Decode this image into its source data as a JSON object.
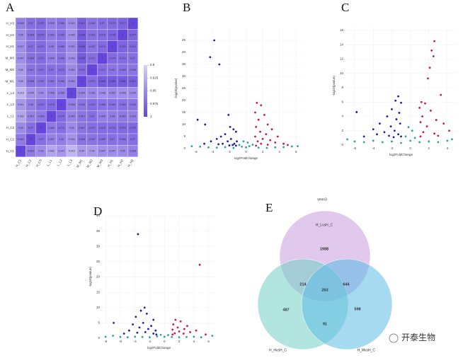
{
  "chart_data": [
    {
      "type": "heatmap",
      "label": "A",
      "rows": [
        "H_H3",
        "H_H2",
        "H_H1",
        "M_M3",
        "M_M2",
        "M_M1",
        "L_L3",
        "L_L2",
        "L_L1",
        "H_C3",
        "H_C2",
        "H_C1"
      ],
      "columns": [
        "H_C1",
        "H_C2",
        "H_C3",
        "L_L1",
        "L_L2",
        "L_L3",
        "M_M1",
        "M_M2",
        "M_M3",
        "H_H1",
        "H_H2",
        "H_H3"
      ],
      "values": [
        [
          0.958,
          0.97,
          0.975,
          0.959,
          0.966,
          0.949,
          0.981,
          0.966,
          0.97,
          0.974,
          0.977,
          1
        ],
        [
          0.95,
          0.968,
          0.975,
          0.963,
          0.969,
          0.948,
          0.985,
          0.969,
          0.973,
          0.978,
          1,
          0.977
        ],
        [
          0.947,
          0.97,
          0.973,
          0.96,
          0.968,
          0.952,
          0.985,
          0.967,
          0.974,
          1,
          0.978,
          0.974
        ],
        [
          0.947,
          0.969,
          0.973,
          0.959,
          0.968,
          0.948,
          0.985,
          0.971,
          1,
          0.974,
          0.973,
          0.97
        ],
        [
          0.94,
          0.967,
          0.971,
          0.97,
          0.972,
          0.952,
          0.973,
          1,
          0.971,
          0.967,
          0.969,
          0.966
        ],
        [
          0.94,
          0.968,
          0.967,
          0.967,
          0.966,
          0.954,
          1,
          0.973,
          0.985,
          0.985,
          0.985,
          0.981
        ],
        [
          0.919,
          0.945,
          0.95,
          0.956,
          0.958,
          1,
          0.954,
          0.952,
          0.948,
          0.952,
          0.948,
          0.949
        ],
        [
          0.941,
          0.96,
          0.971,
          0.974,
          1,
          0.958,
          0.966,
          0.972,
          0.968,
          0.968,
          0.969,
          0.966
        ],
        [
          0.932,
          0.957,
          0.963,
          1,
          0.974,
          0.956,
          0.967,
          0.97,
          0.959,
          0.96,
          0.963,
          0.959
        ],
        [
          0.95,
          0.97,
          1,
          0.963,
          0.971,
          0.95,
          0.967,
          0.971,
          0.973,
          0.973,
          0.975,
          0.975
        ],
        [
          0.962,
          1,
          0.97,
          0.957,
          0.96,
          0.945,
          0.968,
          0.967,
          0.969,
          0.97,
          0.968,
          0.97
        ],
        [
          1,
          0.962,
          0.95,
          0.932,
          0.941,
          0.919,
          0.94,
          0.94,
          0.947,
          0.947,
          0.95,
          0.958
        ]
      ],
      "colorscale": [
        "#d6d0f7",
        "#6446dc"
      ],
      "clim": [
        0.9,
        1
      ],
      "colorbar_ticks": [
        0.9,
        0.925,
        0.95,
        0.975,
        1
      ]
    },
    {
      "type": "scatter",
      "label": "B",
      "xlabel": "log2FoldChange",
      "ylabel": "-log10(pvalue)",
      "xlim": [
        -7,
        7
      ],
      "xticks": [
        -6,
        -4,
        -2,
        0,
        2,
        4,
        6
      ],
      "ylim": [
        0,
        50
      ],
      "yticks": [
        0,
        5,
        10,
        15,
        20,
        25,
        30,
        35,
        40,
        45
      ],
      "series": [
        {
          "color": "#1c1ca6",
          "x": [
            -3.8,
            -4.3,
            -3.2,
            -5.8,
            -4.9,
            -2.1,
            -1.9,
            -1.5,
            -1.2,
            -2.5,
            -3,
            -3.5,
            -1.8,
            -1.1,
            -2.2,
            -4.2,
            -1.4,
            -2.8,
            -1.6,
            -3.3,
            -5,
            -1.2,
            -2
          ],
          "values": [
            45,
            38,
            35,
            12,
            10,
            14,
            9,
            8,
            7,
            6,
            5,
            4,
            4,
            3,
            3,
            3,
            2,
            2,
            1.5,
            1.8,
            2,
            1.2,
            1.3
          ]
        },
        {
          "color": "#d3134b",
          "x": [
            1.3,
            1.8,
            1.1,
            2.2,
            1.5,
            2.6,
            1.2,
            3.1,
            1.7,
            2.4,
            1.1,
            3.8,
            2,
            2.9,
            1.4,
            3.5,
            4.5,
            1.8,
            2.6,
            5,
            1.2
          ],
          "values": [
            19,
            18,
            15,
            14,
            12,
            10,
            9,
            8,
            7,
            6,
            5,
            5,
            4,
            3.5,
            3,
            2.5,
            2,
            2,
            1.6,
            1.5,
            1.2
          ]
        },
        {
          "color": "#2aa3a0",
          "x": [
            -6.5,
            -5.5,
            -4.5,
            -3.5,
            -2.5,
            -1.5,
            -0.8,
            -0.5,
            0,
            0.4,
            0.8,
            1.5,
            2.5,
            3.5,
            4.5,
            5.5,
            6.2,
            0.2,
            -0.3
          ],
          "values": [
            1,
            0.8,
            0.5,
            0.4,
            0.6,
            0.3,
            1.5,
            0.8,
            0.5,
            1,
            1.6,
            0.4,
            0.3,
            0.5,
            0.6,
            0.9,
            1,
            2.5,
            3
          ]
        }
      ]
    },
    {
      "type": "scatter",
      "label": "C",
      "xlabel": "log2FoldChange",
      "ylabel": "-log10(pvalue)",
      "xlim": [
        -7,
        5
      ],
      "xticks": [
        -6,
        -4,
        -2,
        0,
        2,
        4
      ],
      "ylim": [
        0,
        16.5
      ],
      "yticks": [
        0,
        2,
        4,
        6,
        8,
        10,
        12,
        14,
        16
      ],
      "series": [
        {
          "color": "#1c1ca6",
          "x": [
            -1.3,
            -1.6,
            -1,
            -2,
            -1.2,
            -2.5,
            -1.5,
            -3.3,
            -1.1,
            -2.1,
            -4,
            -1.7,
            -5.8,
            -2.8,
            -1.3,
            -3.6,
            -1,
            -5,
            -2.3,
            -1.8
          ],
          "values": [
            6.8,
            6.2,
            5.9,
            5,
            4.5,
            4,
            3.6,
            3,
            3,
            2.6,
            2.2,
            2,
            4.6,
            1.8,
            1.5,
            1.5,
            1.2,
            1.2,
            1.3,
            1.1
          ]
        },
        {
          "color": "#d3134b",
          "x": [
            2.6,
            2.3,
            2.5,
            2.1,
            1.9,
            3.3,
            1.2,
            1.6,
            1,
            2.2,
            1.3,
            2.8,
            1.1,
            3.6,
            1.8,
            4.2,
            1.4,
            2.6,
            3,
            1.1
          ],
          "values": [
            14.5,
            13.2,
            12.4,
            10.8,
            9.3,
            7,
            6,
            5.8,
            5.2,
            4.8,
            4,
            3.5,
            3.2,
            3,
            2.6,
            2,
            1.8,
            1.6,
            1.3,
            1.2
          ]
        },
        {
          "color": "#2aa3a0",
          "x": [
            -6,
            -5,
            -4,
            -3,
            -2,
            -1,
            -0.5,
            0,
            0.5,
            1,
            2,
            3,
            4,
            0.2,
            -0.2,
            -6.8,
            4.5
          ],
          "values": [
            0.5,
            0.4,
            0.6,
            0.4,
            0.5,
            0.3,
            1.2,
            0.6,
            1,
            0.4,
            0.5,
            0.4,
            0.6,
            2,
            2.5,
            0.8,
            0.8
          ]
        }
      ]
    },
    {
      "type": "scatter",
      "label": "D",
      "xlabel": "log2FoldChange",
      "ylabel": "-log10(pvalue)",
      "xlim": [
        -8.5,
        7
      ],
      "xticks": [
        -8,
        -6,
        -4,
        -2,
        0,
        2,
        4,
        6
      ],
      "ylim": [
        0,
        40
      ],
      "yticks": [
        0,
        5,
        10,
        15,
        20,
        25,
        30,
        35,
        40
      ],
      "series": [
        {
          "color": "#1c1ca6",
          "x": [
            -3.6,
            -2.7,
            -3.2,
            -2.4,
            -3.9,
            -1.5,
            -2.9,
            -4.3,
            -1.8,
            -3.4,
            -2.2,
            -1.2,
            -4.8,
            -2.6,
            -3.7,
            -1.5,
            -6.9,
            -5.5,
            -1.1
          ],
          "values": [
            34,
            10,
            9,
            8,
            7,
            6,
            5,
            4.5,
            4,
            3.5,
            3,
            2.5,
            2.5,
            2,
            1.8,
            1.5,
            5,
            1.5,
            1.2
          ]
        },
        {
          "color": "#d3134b",
          "x": [
            4.8,
            1.5,
            2.2,
            1.2,
            3.1,
            1.8,
            2.7,
            1.1,
            4.3,
            2,
            3.5,
            1.4,
            2.6,
            5.6,
            1.1
          ],
          "values": [
            24,
            6,
            5.5,
            4.5,
            4,
            3.5,
            3,
            2.8,
            2.5,
            2.2,
            2,
            1.6,
            1.5,
            1.2,
            1.2
          ]
        },
        {
          "color": "#2aa3a0",
          "x": [
            -8,
            -7,
            -6,
            -5,
            -4,
            -3,
            -2,
            -1,
            -0.5,
            0,
            0.5,
            1,
            2,
            3,
            4,
            5,
            6.5
          ],
          "values": [
            0.5,
            0.8,
            0.4,
            0.3,
            0.5,
            0.4,
            0.3,
            0.6,
            1.1,
            0.5,
            1,
            0.4,
            0.3,
            0.4,
            0.5,
            0.3,
            0.8
          ]
        }
      ]
    },
    {
      "type": "venn",
      "label": "E",
      "title": "venn3",
      "sets": [
        {
          "name": "H_LvsH_C",
          "color": "#c89bde"
        },
        {
          "name": "H_HvsH_C",
          "color": "#72cfc4"
        },
        {
          "name": "H_MvsH_C",
          "color": "#5dbbe6"
        }
      ],
      "regions": [
        1988,
        214,
        263,
        644,
        487,
        598,
        91
      ],
      "watermark": "开泰生物"
    }
  ]
}
